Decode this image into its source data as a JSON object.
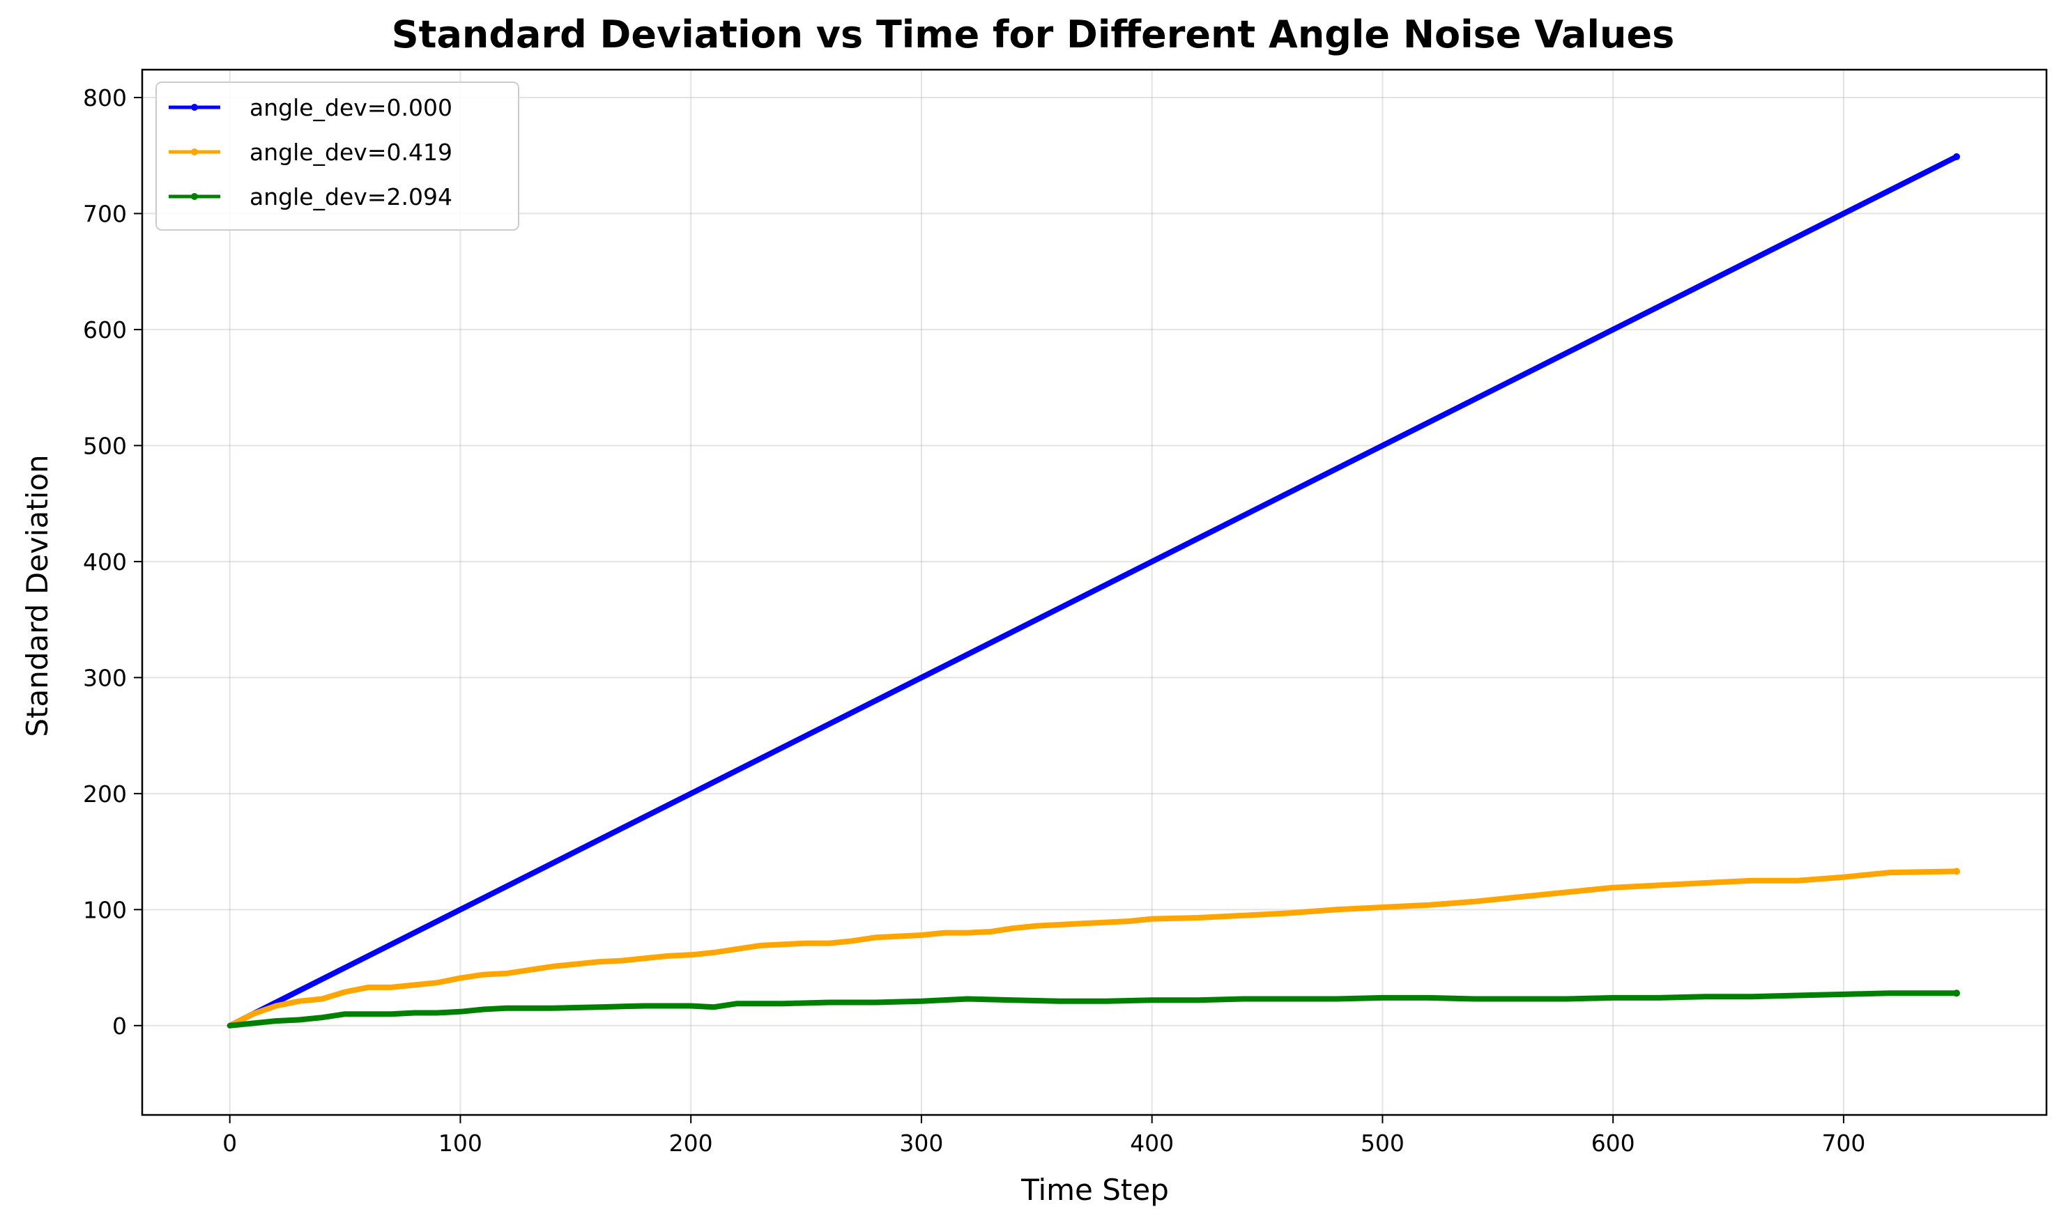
{
  "chart_data": {
    "type": "line",
    "title": "Standard Deviation vs Time for Different Angle Noise Values",
    "xlabel": "Time Step",
    "ylabel": "Standard Deviation",
    "xlim": [
      -38,
      788
    ],
    "ylim": [
      -77,
      824
    ],
    "xticks": [
      0,
      100,
      200,
      300,
      400,
      500,
      600,
      700
    ],
    "yticks": [
      0,
      100,
      200,
      300,
      400,
      500,
      600,
      700,
      800
    ],
    "grid": true,
    "legend_position": "top-left",
    "series": [
      {
        "name": "angle_dev=0.000",
        "color": "#0000ff",
        "x": [
          0,
          749
        ],
        "y": [
          0,
          749
        ]
      },
      {
        "name": "angle_dev=0.419",
        "color": "#ffa500",
        "x": [
          0,
          10,
          20,
          30,
          40,
          50,
          60,
          70,
          80,
          90,
          100,
          110,
          120,
          130,
          140,
          150,
          160,
          170,
          180,
          190,
          200,
          210,
          220,
          230,
          240,
          250,
          260,
          270,
          280,
          290,
          300,
          310,
          320,
          330,
          340,
          350,
          360,
          370,
          380,
          390,
          400,
          420,
          440,
          460,
          480,
          500,
          520,
          540,
          560,
          580,
          600,
          620,
          640,
          660,
          680,
          700,
          720,
          749
        ],
        "y": [
          0,
          10,
          17,
          21,
          23,
          29,
          33,
          33,
          35,
          37,
          41,
          44,
          45,
          48,
          51,
          53,
          55,
          56,
          58,
          60,
          61,
          63,
          66,
          69,
          70,
          71,
          71,
          73,
          76,
          77,
          78,
          80,
          80,
          81,
          84,
          86,
          87,
          88,
          89,
          90,
          92,
          93,
          95,
          97,
          100,
          102,
          104,
          107,
          111,
          115,
          119,
          121,
          123,
          125,
          125,
          128,
          132,
          133
        ]
      },
      {
        "name": "angle_dev=2.094",
        "color": "#008000",
        "x": [
          0,
          10,
          20,
          30,
          40,
          50,
          60,
          70,
          80,
          90,
          100,
          110,
          120,
          140,
          160,
          180,
          200,
          210,
          220,
          240,
          260,
          280,
          300,
          320,
          340,
          360,
          380,
          400,
          420,
          440,
          460,
          480,
          500,
          520,
          540,
          560,
          580,
          600,
          620,
          640,
          660,
          680,
          700,
          720,
          749
        ],
        "y": [
          0,
          2,
          4,
          5,
          7,
          10,
          10,
          10,
          11,
          11,
          12,
          14,
          15,
          15,
          16,
          17,
          17,
          16,
          19,
          19,
          20,
          20,
          21,
          23,
          22,
          21,
          21,
          22,
          22,
          23,
          23,
          23,
          24,
          24,
          23,
          23,
          23,
          24,
          24,
          25,
          25,
          26,
          27,
          28,
          28
        ]
      }
    ]
  }
}
